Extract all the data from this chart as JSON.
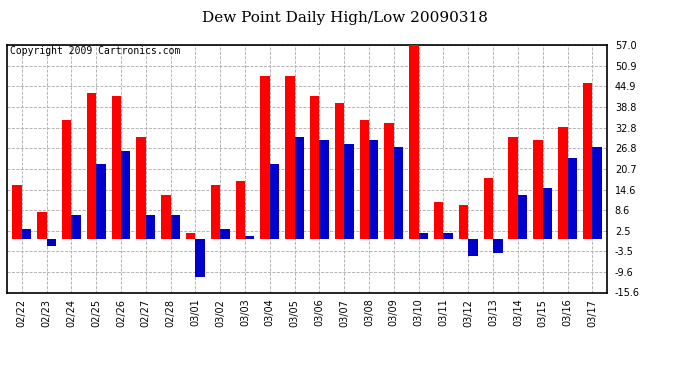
{
  "title": "Dew Point Daily High/Low 20090318",
  "copyright": "Copyright 2009 Cartronics.com",
  "dates": [
    "02/22",
    "02/23",
    "02/24",
    "02/25",
    "02/26",
    "02/27",
    "02/28",
    "03/01",
    "03/02",
    "03/03",
    "03/04",
    "03/05",
    "03/06",
    "03/07",
    "03/08",
    "03/09",
    "03/10",
    "03/11",
    "03/12",
    "03/13",
    "03/14",
    "03/15",
    "03/16",
    "03/17"
  ],
  "highs": [
    16,
    8,
    35,
    43,
    42,
    30,
    13,
    2,
    16,
    17,
    48,
    48,
    42,
    40,
    35,
    34,
    57,
    11,
    10,
    18,
    30,
    29,
    33,
    46
  ],
  "lows": [
    3,
    -2,
    7,
    22,
    26,
    7,
    7,
    -11,
    3,
    1,
    22,
    30,
    29,
    28,
    29,
    27,
    2,
    2,
    -5,
    -4,
    13,
    15,
    24,
    27
  ],
  "high_color": "#ff0000",
  "low_color": "#0000cc",
  "background_color": "#ffffff",
  "grid_color": "#aaaaaa",
  "ylim": [
    -15.6,
    57.0
  ],
  "yticks": [
    -15.6,
    -9.6,
    -3.5,
    2.5,
    8.6,
    14.6,
    20.7,
    26.8,
    32.8,
    38.8,
    44.9,
    50.9,
    57.0
  ],
  "ytick_labels": [
    "-15.6",
    "-9.6",
    "-3.5",
    "2.5",
    "8.6",
    "14.6",
    "20.7",
    "26.8",
    "32.8",
    "38.8",
    "44.9",
    "50.9",
    "57.0"
  ],
  "title_fontsize": 11,
  "copyright_fontsize": 7,
  "tick_fontsize": 7,
  "bar_width": 0.38
}
